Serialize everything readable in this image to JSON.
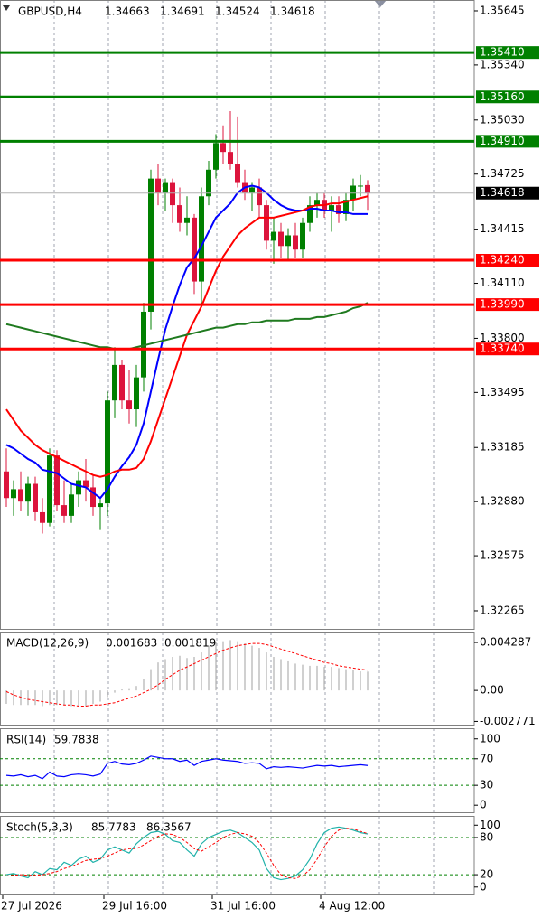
{
  "chart_data": [
    {
      "type": "candlestick",
      "title": "GBPUSD,H4",
      "categories": [
        "27 Jul 2026",
        null,
        null,
        null,
        null,
        null,
        null,
        null,
        null,
        null,
        null,
        null,
        null,
        null,
        "29 Jul 16:00",
        null,
        null,
        null,
        null,
        null,
        null,
        null,
        null,
        null,
        null,
        null,
        null,
        null,
        null,
        "31 Jul 16:00",
        null,
        null,
        null,
        null,
        null,
        null,
        null,
        null,
        null,
        null,
        null,
        null,
        null,
        null,
        "4 Aug 12:00",
        null,
        null,
        null,
        null,
        null,
        null
      ],
      "open": [
        1.3305,
        1.329,
        1.3295,
        1.3288,
        1.3298,
        1.3282,
        1.3276,
        1.3314,
        1.3286,
        1.328,
        1.3292,
        1.33,
        1.3296,
        1.3285,
        1.3287,
        1.3345,
        1.3365,
        1.3345,
        1.334,
        1.3358,
        1.3395,
        1.347,
        1.3462,
        1.3468,
        1.3455,
        1.3445,
        1.3448,
        1.3412,
        1.346,
        1.3475,
        1.349,
        1.3485,
        1.3478,
        1.3468,
        1.3462,
        1.3465,
        1.3455,
        1.3435,
        1.344,
        1.3432,
        1.3438,
        1.343,
        1.3445,
        1.3455,
        1.3458,
        1.3452,
        1.3455,
        1.345,
        1.3458,
        1.3466,
        1.34663
      ],
      "high": [
        1.3318,
        1.33,
        1.3305,
        1.3302,
        1.3302,
        1.329,
        1.3318,
        1.3317,
        1.33,
        1.3298,
        1.3305,
        1.3312,
        1.3303,
        1.329,
        1.335,
        1.3375,
        1.3368,
        1.3362,
        1.3365,
        1.34,
        1.3475,
        1.3478,
        1.347,
        1.347,
        1.3465,
        1.346,
        1.345,
        1.3465,
        1.348,
        1.3495,
        1.35,
        1.3508,
        1.3505,
        1.3475,
        1.3468,
        1.347,
        1.3458,
        1.3448,
        1.3445,
        1.3442,
        1.3445,
        1.3448,
        1.346,
        1.3462,
        1.3462,
        1.346,
        1.346,
        1.3462,
        1.347,
        1.3472,
        1.34691
      ],
      "low": [
        1.3285,
        1.328,
        1.3283,
        1.328,
        1.3277,
        1.327,
        1.3274,
        1.3283,
        1.3276,
        1.3276,
        1.3285,
        1.3288,
        1.328,
        1.3272,
        1.328,
        1.3335,
        1.334,
        1.3332,
        1.333,
        1.335,
        1.3385,
        1.3455,
        1.3452,
        1.3445,
        1.344,
        1.3438,
        1.3405,
        1.3398,
        1.3455,
        1.347,
        1.3478,
        1.3475,
        1.3465,
        1.3458,
        1.3452,
        1.3448,
        1.343,
        1.3422,
        1.3425,
        1.3424,
        1.3425,
        1.3425,
        1.344,
        1.3448,
        1.3448,
        1.344,
        1.3445,
        1.3446,
        1.3452,
        1.346,
        1.34524
      ],
      "close": [
        1.329,
        1.3295,
        1.3288,
        1.3298,
        1.3282,
        1.3276,
        1.3314,
        1.3286,
        1.328,
        1.3292,
        1.33,
        1.3296,
        1.3285,
        1.3287,
        1.3345,
        1.3365,
        1.3345,
        1.334,
        1.3358,
        1.3395,
        1.347,
        1.3462,
        1.3468,
        1.3455,
        1.3445,
        1.3448,
        1.3412,
        1.346,
        1.3475,
        1.349,
        1.3485,
        1.3478,
        1.3468,
        1.3462,
        1.3465,
        1.3455,
        1.3435,
        1.344,
        1.3432,
        1.3438,
        1.343,
        1.3445,
        1.3455,
        1.3458,
        1.3452,
        1.3455,
        1.345,
        1.3458,
        1.3466,
        1.3466,
        1.34618
      ],
      "up_color": "#008000",
      "down_color": "#dc143c",
      "overlays": [
        {
          "color": "#0000ff",
          "values": [
            1.332,
            1.3318,
            1.3315,
            1.3312,
            1.331,
            1.3306,
            1.3305,
            1.3304,
            1.3301,
            1.3298,
            1.3297,
            1.3296,
            1.3293,
            1.329,
            1.3295,
            1.3302,
            1.3308,
            1.3313,
            1.332,
            1.3332,
            1.335,
            1.3368,
            1.3385,
            1.3398,
            1.341,
            1.342,
            1.3425,
            1.3432,
            1.344,
            1.3448,
            1.3452,
            1.3456,
            1.3462,
            1.3465,
            1.3466,
            1.3465,
            1.3462,
            1.3458,
            1.3455,
            1.3453,
            1.3452,
            1.3452,
            1.3453,
            1.3453,
            1.3452,
            1.3452,
            1.3451,
            1.3451,
            1.345,
            1.345,
            1.345
          ]
        },
        {
          "color": "#ff0000",
          "values": [
            1.334,
            1.3334,
            1.3328,
            1.3324,
            1.332,
            1.3317,
            1.3315,
            1.3313,
            1.3311,
            1.3309,
            1.3307,
            1.3305,
            1.3303,
            1.3302,
            1.3303,
            1.3305,
            1.3306,
            1.3306,
            1.3307,
            1.3312,
            1.3322,
            1.3334,
            1.3346,
            1.3358,
            1.337,
            1.3382,
            1.339,
            1.3398,
            1.3408,
            1.3418,
            1.3426,
            1.3432,
            1.3438,
            1.3442,
            1.3445,
            1.3448,
            1.3448,
            1.3448,
            1.3449,
            1.345,
            1.3451,
            1.3452,
            1.3454,
            1.3455,
            1.3455,
            1.3456,
            1.3456,
            1.3457,
            1.3458,
            1.3459,
            1.346
          ]
        },
        {
          "color": "#1f7a1f",
          "values": [
            1.3388,
            1.3387,
            1.3386,
            1.3385,
            1.3384,
            1.3383,
            1.3382,
            1.3381,
            1.338,
            1.3379,
            1.3378,
            1.3377,
            1.3376,
            1.3375,
            1.3375,
            1.3374,
            1.3374,
            1.3374,
            1.3375,
            1.3376,
            1.3377,
            1.3378,
            1.3379,
            1.338,
            1.3381,
            1.3382,
            1.3383,
            1.3384,
            1.3385,
            1.3386,
            1.3386,
            1.3387,
            1.3388,
            1.3388,
            1.3389,
            1.3389,
            1.339,
            1.339,
            1.339,
            1.339,
            1.3391,
            1.3391,
            1.3391,
            1.3392,
            1.3392,
            1.3393,
            1.3394,
            1.3395,
            1.3397,
            1.3398,
            1.34
          ]
        }
      ],
      "levels": [
        {
          "value": 1.3541,
          "label": "1.35410",
          "color": "#008000"
        },
        {
          "value": 1.3516,
          "label": "1.35160",
          "color": "#008000"
        },
        {
          "value": 1.3491,
          "label": "1.34910",
          "color": "#008000"
        },
        {
          "value": 1.3424,
          "label": "1.34240",
          "color": "#ff0000"
        },
        {
          "value": 1.3399,
          "label": "1.33990",
          "color": "#ff0000"
        },
        {
          "value": 1.3374,
          "label": "1.33740",
          "color": "#ff0000"
        }
      ],
      "ylim": [
        1.32158,
        1.35706
      ],
      "yticks": [
        1.35645,
        {
          "value": 1.3534,
          "label": "1.35340"
        },
        {
          "value": 1.3503,
          "label": "1.35030"
        },
        1.34725,
        1.34415,
        {
          "value": 1.3411,
          "label": "1.34110"
        },
        {
          "value": 1.338,
          "label": "1.33800"
        },
        1.33495,
        1.33185,
        {
          "value": 1.3288,
          "label": "1.32880"
        },
        1.32575,
        1.32265
      ],
      "grid": true
    },
    {
      "type": "macd",
      "title": "MACD(12,26,9)",
      "values": [
        -0.0012,
        -0.0013,
        -0.0013,
        -0.0013,
        -0.0013,
        -0.0014,
        -0.0013,
        -0.0013,
        -0.0013,
        -0.0014,
        -0.0014,
        -0.0014,
        -0.0012,
        -0.001,
        -0.0006,
        -0.0002,
        0.0001,
        0.0002,
        0.0004,
        0.001,
        0.0019,
        0.0025,
        0.0028,
        0.003,
        0.0031,
        0.0029,
        0.003,
        0.0034,
        0.004,
        0.0043,
        0.0044,
        0.0045,
        0.0044,
        0.0042,
        0.004,
        0.0038,
        0.0034,
        0.003,
        0.0028,
        0.0026,
        0.0024,
        0.0023,
        0.0022,
        0.0022,
        0.0021,
        0.0021,
        0.002,
        0.0019,
        0.0018,
        0.0017,
        0.001683
      ],
      "signal": [
        -0.0001,
        -0.0004,
        -0.0006,
        -0.0008,
        -0.0009,
        -0.001,
        -0.0011,
        -0.0012,
        -0.0013,
        -0.0013,
        -0.0014,
        -0.0014,
        -0.0013,
        -0.0013,
        -0.0012,
        -0.0011,
        -0.0009,
        -0.0007,
        -0.0005,
        -0.0002,
        0.0001,
        0.0005,
        0.001,
        0.0014,
        0.0018,
        0.0021,
        0.0024,
        0.0027,
        0.003,
        0.0033,
        0.0036,
        0.0038,
        0.004,
        0.0041,
        0.0042,
        0.0042,
        0.0041,
        0.0039,
        0.0037,
        0.0035,
        0.0033,
        0.0031,
        0.0029,
        0.0027,
        0.0025,
        0.0024,
        0.0022,
        0.0021,
        0.002,
        0.0019,
        0.001819
      ],
      "color": "#c0c0c0",
      "signal_color": "#ff0000",
      "ylim": [
        -0.00314,
        0.00518
      ],
      "yticks": [
        0.004287,
        {
          "value": 0,
          "label": "0.00"
        },
        -0.002771
      ]
    },
    {
      "type": "rsi",
      "title": "RSI(14)",
      "values": [
        45,
        44,
        46,
        43,
        45,
        40,
        50,
        44,
        43,
        46,
        47,
        46,
        44,
        47,
        63,
        66,
        62,
        61,
        63,
        68,
        74,
        72,
        70,
        70,
        66,
        68,
        60,
        66,
        68,
        70,
        68,
        67,
        66,
        63,
        64,
        63,
        55,
        58,
        57,
        58,
        57,
        56,
        58,
        60,
        59,
        60,
        58,
        59,
        60,
        61,
        59.7838
      ],
      "color": "#0000ff",
      "level_color": "#008000",
      "levels": [
        70,
        30
      ],
      "ylim": [
        -12,
        116
      ],
      "yticks": [
        100,
        70,
        30,
        0
      ]
    },
    {
      "type": "stoch",
      "title": "Stoch(5,3,3)",
      "values": [
        20,
        22,
        18,
        15,
        25,
        20,
        30,
        28,
        40,
        35,
        45,
        50,
        40,
        45,
        60,
        65,
        60,
        55,
        70,
        80,
        88,
        90,
        85,
        75,
        72,
        60,
        50,
        70,
        80,
        85,
        90,
        92,
        88,
        80,
        72,
        60,
        30,
        15,
        12,
        14,
        18,
        28,
        45,
        70,
        88,
        95,
        97,
        95,
        92,
        88,
        85.7783
      ],
      "signal": [
        18,
        19,
        20,
        19,
        19,
        20,
        22,
        25,
        30,
        33,
        38,
        43,
        45,
        46,
        50,
        55,
        60,
        62,
        62,
        68,
        75,
        82,
        86,
        85,
        80,
        72,
        62,
        58,
        65,
        72,
        80,
        85,
        88,
        86,
        82,
        72,
        55,
        35,
        20,
        15,
        14,
        18,
        28,
        45,
        65,
        82,
        92,
        95,
        94,
        90,
        86.3567
      ],
      "color": "#20b2aa",
      "signal_color": "#ff0000",
      "level_color": "#008000",
      "levels": [
        80,
        20
      ],
      "ylim": [
        -12,
        115
      ],
      "yticks": [
        100,
        80,
        20,
        0
      ]
    }
  ]
}
